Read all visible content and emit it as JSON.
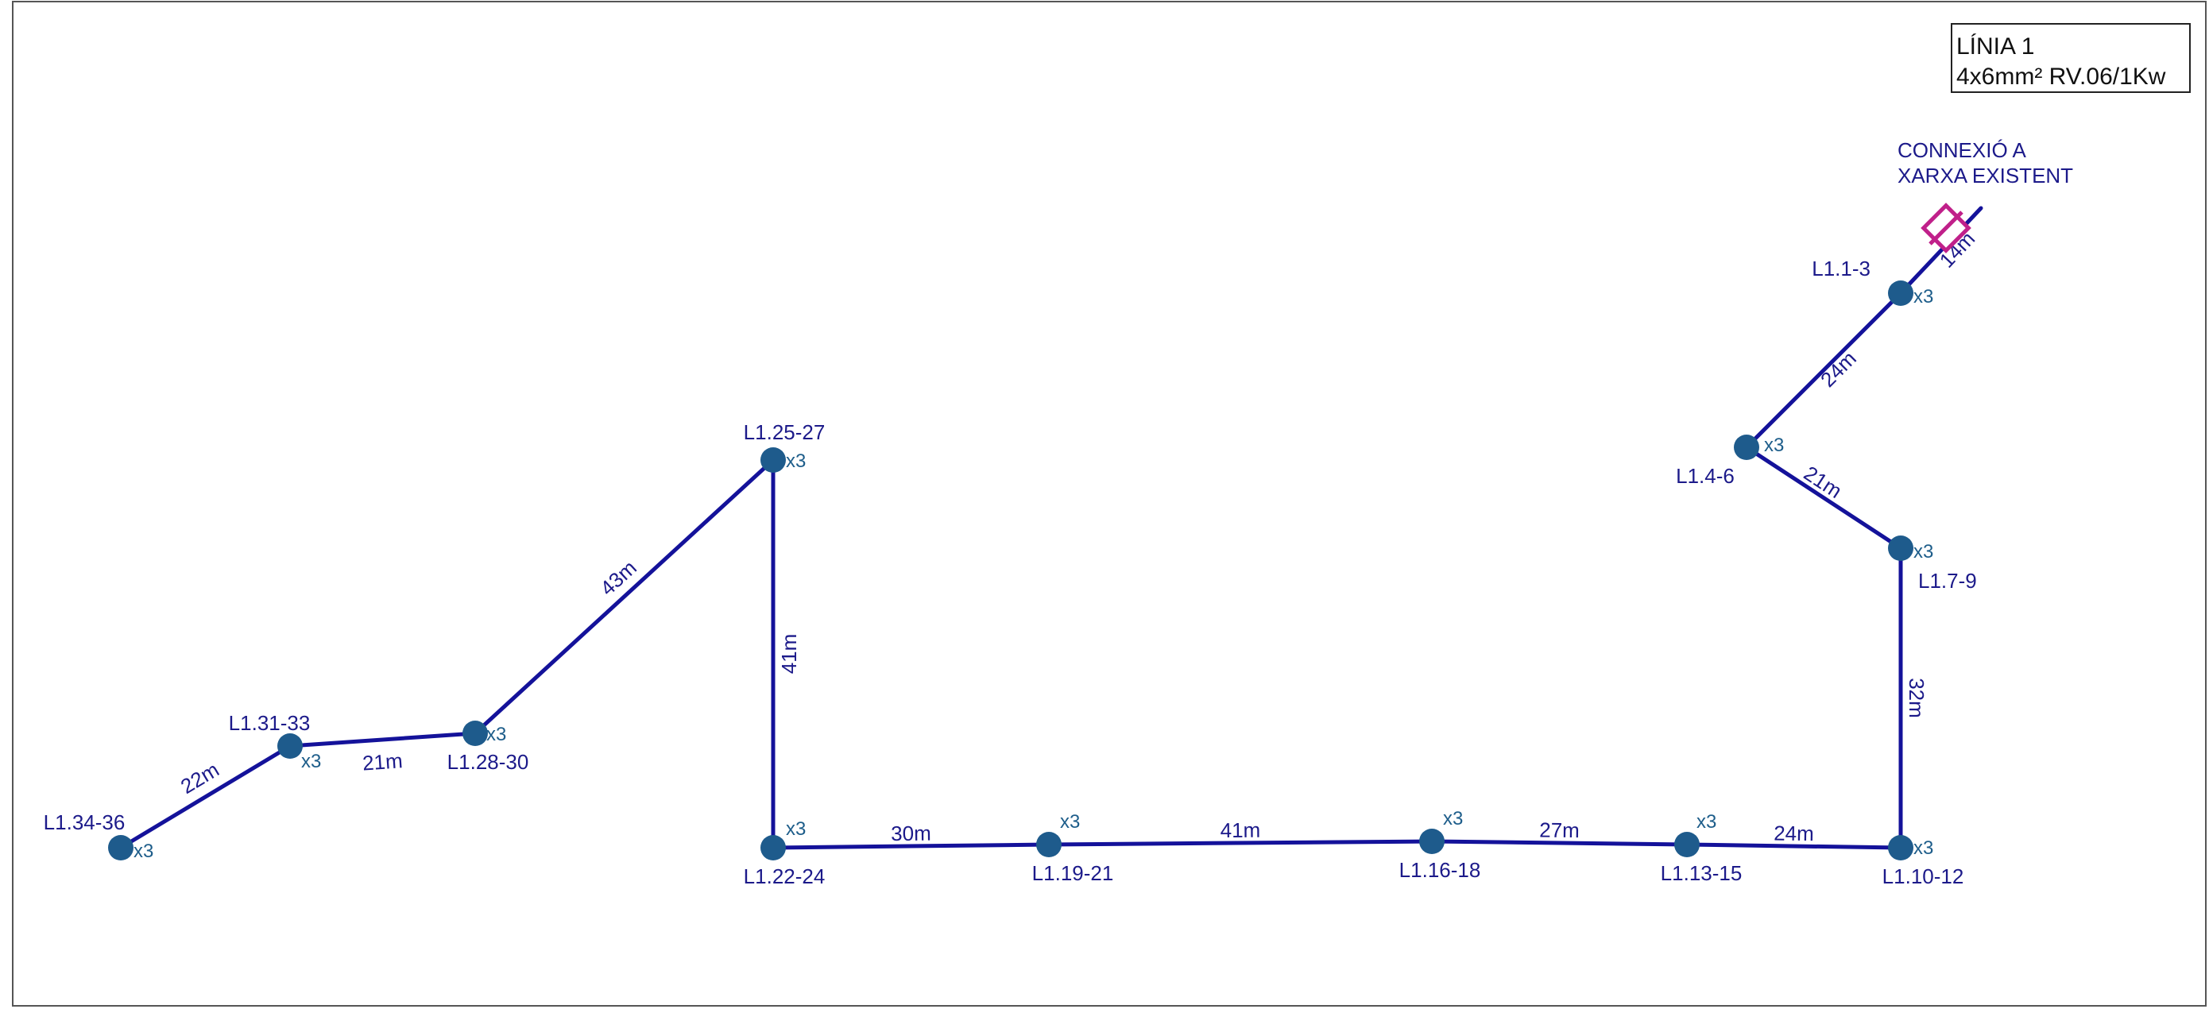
{
  "legend": {
    "title": "LÍNIA 1",
    "cable": "4x6mm²  RV.06/1Kw"
  },
  "connection": {
    "line1": "CONNEXIÓ A",
    "line2": "XARXA EXISTENT"
  },
  "multiplier": "x3",
  "nodes": [
    {
      "id": "n1",
      "label": "L1.1-3"
    },
    {
      "id": "n2",
      "label": "L1.4-6"
    },
    {
      "id": "n3",
      "label": "L1.7-9"
    },
    {
      "id": "n4",
      "label": "L1.10-12"
    },
    {
      "id": "n5",
      "label": "L1.13-15"
    },
    {
      "id": "n6",
      "label": "L1.16-18"
    },
    {
      "id": "n7",
      "label": "L1.19-21"
    },
    {
      "id": "n8",
      "label": "L1.22-24"
    },
    {
      "id": "n9",
      "label": "L1.25-27"
    },
    {
      "id": "n10",
      "label": "L1.28-30"
    },
    {
      "id": "n11",
      "label": "L1.31-33"
    },
    {
      "id": "n12",
      "label": "L1.34-36"
    }
  ],
  "segments": [
    {
      "from": "conn",
      "to": "n1",
      "length": "14m"
    },
    {
      "from": "n1",
      "to": "n2",
      "length": "24m"
    },
    {
      "from": "n2",
      "to": "n3",
      "length": "21m"
    },
    {
      "from": "n3",
      "to": "n4",
      "length": "32m"
    },
    {
      "from": "n4",
      "to": "n5",
      "length": "24m"
    },
    {
      "from": "n5",
      "to": "n6",
      "length": "27m"
    },
    {
      "from": "n6",
      "to": "n7",
      "length": "41m"
    },
    {
      "from": "n7",
      "to": "n8",
      "length": "30m"
    },
    {
      "from": "n8",
      "to": "n9",
      "length": "41m"
    },
    {
      "from": "n9",
      "to": "n10",
      "length": "43m"
    },
    {
      "from": "n10",
      "to": "n11",
      "length": "21m"
    },
    {
      "from": "n11",
      "to": "n12",
      "length": "22m"
    }
  ],
  "colors": {
    "line": "#14129a",
    "node": "#1e5b8c",
    "connector": "#c0208a",
    "text": "#1c1a8a"
  }
}
